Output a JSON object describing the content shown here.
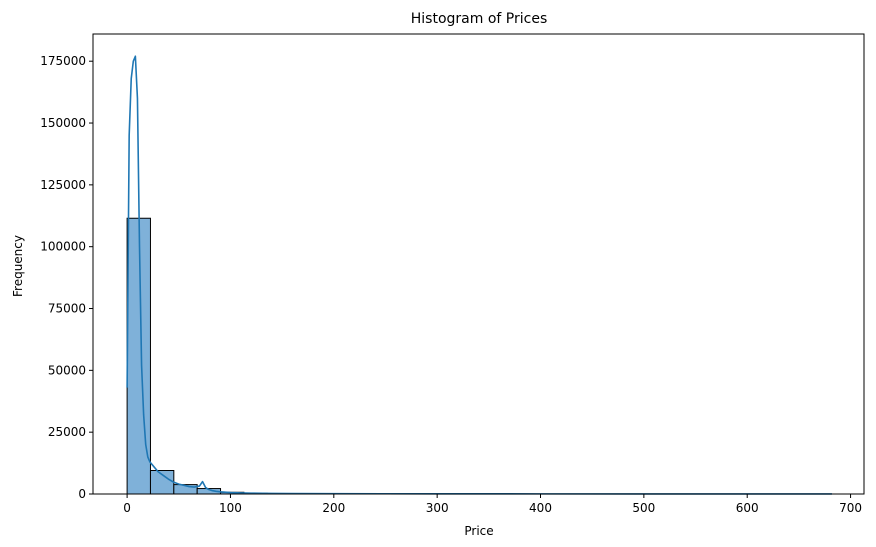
{
  "chart_data": {
    "type": "bar",
    "subtype": "histogram with kde overlay",
    "title": "Histogram of Prices",
    "xlabel": "Price",
    "ylabel": "Frequency",
    "xlim": [
      -33,
      713
    ],
    "ylim": [
      0,
      186000
    ],
    "x_ticks": [
      0,
      100,
      200,
      300,
      400,
      500,
      600,
      700
    ],
    "y_ticks": [
      0,
      25000,
      50000,
      75000,
      100000,
      125000,
      150000,
      175000
    ],
    "x_tick_labels": [
      "0",
      "100",
      "200",
      "300",
      "400",
      "500",
      "600",
      "700"
    ],
    "y_tick_labels": [
      "0",
      "25000",
      "50000",
      "75000",
      "100000",
      "125000",
      "150000",
      "175000"
    ],
    "grid": false,
    "bins": {
      "edges": [
        0,
        22.6,
        45.2,
        67.8,
        90.4,
        113.0,
        135.6,
        158.2,
        180.8,
        203.4,
        226.0,
        248.6,
        271.2,
        293.8,
        316.4,
        339.0,
        361.6,
        384.2,
        406.8,
        429.4,
        452.0,
        474.6,
        497.2,
        519.8,
        542.4,
        565.0,
        587.6,
        610.2,
        632.8,
        655.4,
        678.0
      ],
      "counts": [
        111500,
        9500,
        3800,
        2200,
        700,
        300,
        150,
        100,
        60,
        40,
        30,
        20,
        20,
        15,
        10,
        10,
        8,
        6,
        5,
        5,
        4,
        4,
        3,
        3,
        2,
        2,
        2,
        1,
        1,
        1
      ]
    },
    "kde": {
      "x": [
        0,
        2,
        4,
        6,
        8,
        10,
        12,
        14,
        16,
        18,
        20,
        22,
        25,
        30,
        35,
        40,
        45,
        50,
        55,
        60,
        65,
        70,
        73,
        76,
        79,
        82,
        86,
        90,
        100,
        110,
        120,
        140,
        160,
        200,
        250,
        300,
        400,
        500,
        600,
        682
      ],
      "y": [
        43000,
        145000,
        168000,
        175000,
        177000,
        160000,
        100000,
        52000,
        32000,
        20000,
        15000,
        13000,
        11500,
        9000,
        7500,
        6000,
        4800,
        4000,
        3500,
        3000,
        2800,
        3200,
        5000,
        2600,
        1800,
        1400,
        1100,
        900,
        600,
        450,
        350,
        250,
        200,
        150,
        100,
        80,
        50,
        40,
        30,
        20
      ]
    },
    "colors": {
      "bar_fill": "#7fb1d9",
      "bar_edge": "#000000",
      "kde_line": "#1f77b4",
      "axis": "#000000"
    }
  }
}
